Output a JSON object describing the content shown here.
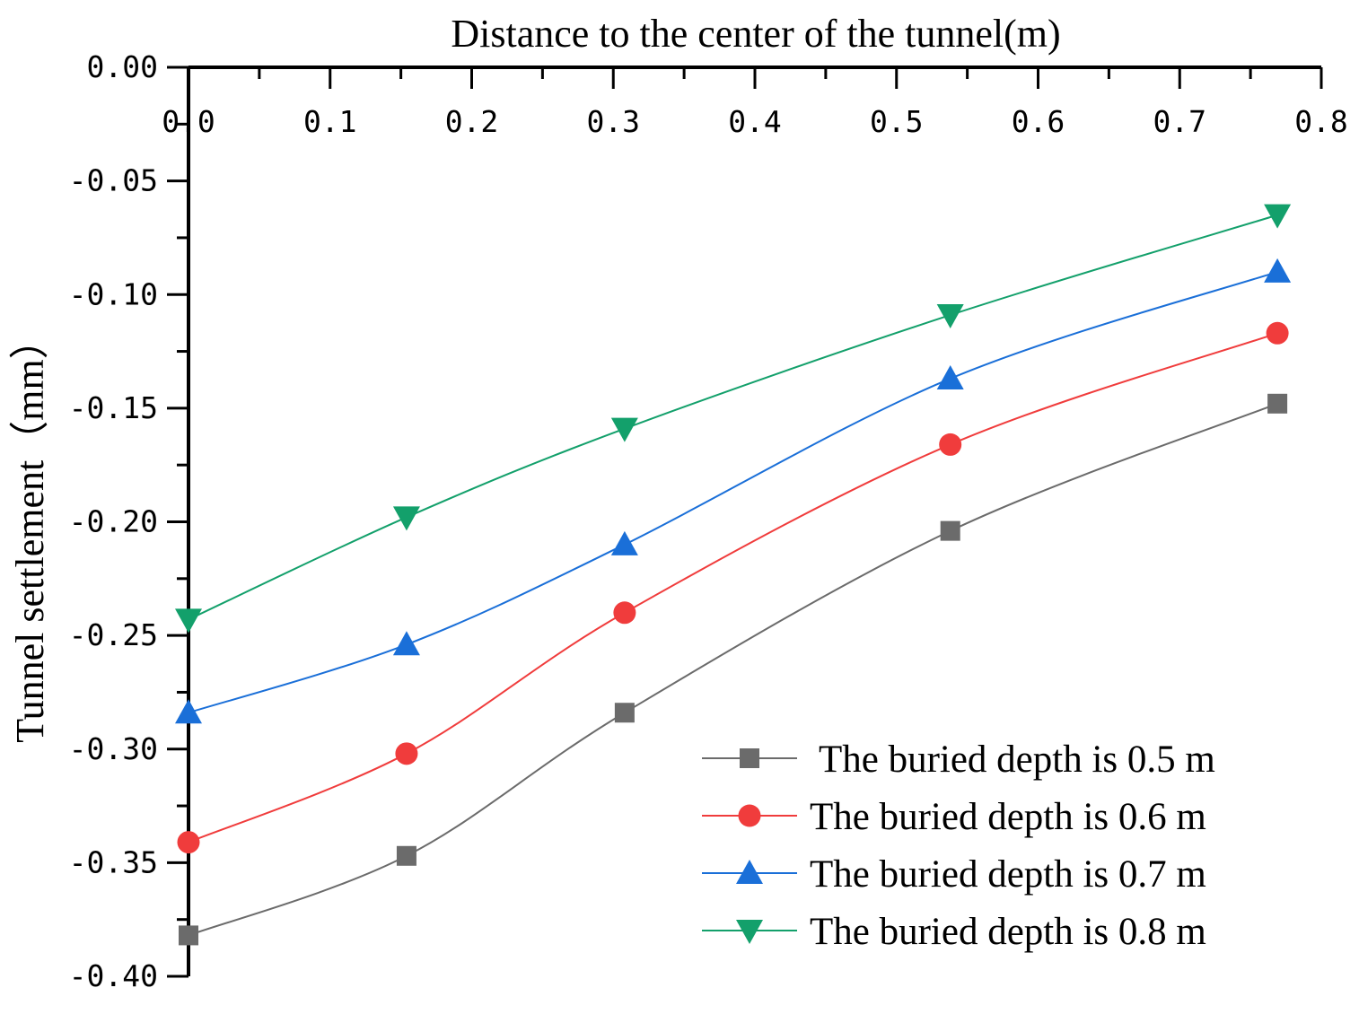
{
  "chart_data": {
    "type": "line",
    "title": "Distance to the center of the tunnel(m)",
    "xlabel": "Distance to the center of the tunnel(m)",
    "ylabel": "Tunnel settlement（mm）",
    "xlim": [
      0,
      0.8
    ],
    "ylim": [
      -0.4,
      0
    ],
    "x_axis_position": "top",
    "x_ticks": [
      "0.0",
      "0.1",
      "0.2",
      "0.3",
      "0.4",
      "0.5",
      "0.6",
      "0.7",
      "0.8"
    ],
    "y_ticks": [
      "0.00",
      "-0.05",
      "-0.10",
      "-0.15",
      "-0.20",
      "-0.25",
      "-0.30",
      "-0.35",
      "-0.40"
    ],
    "x": [
      0.0,
      0.154,
      0.308,
      0.538,
      0.769
    ],
    "series": [
      {
        "name": " The buried depth is 0.5 m",
        "color": "#6b6b6b",
        "marker": "square",
        "values": [
          -0.382,
          -0.347,
          -0.284,
          -0.204,
          -0.148
        ]
      },
      {
        "name": "The buried depth is 0.6 m",
        "color": "#f03c3c",
        "marker": "circle",
        "values": [
          -0.341,
          -0.302,
          -0.24,
          -0.166,
          -0.117
        ]
      },
      {
        "name": "The buried depth is 0.7 m",
        "color": "#1a6fd8",
        "marker": "triangle-up",
        "values": [
          -0.284,
          -0.254,
          -0.21,
          -0.137,
          -0.09
        ]
      },
      {
        "name": "The buried depth is 0.8 m",
        "color": "#13a06b",
        "marker": "triangle-down",
        "values": [
          -0.243,
          -0.198,
          -0.159,
          -0.109,
          -0.065
        ]
      }
    ],
    "legend_position": "bottom-right",
    "grid": false
  }
}
